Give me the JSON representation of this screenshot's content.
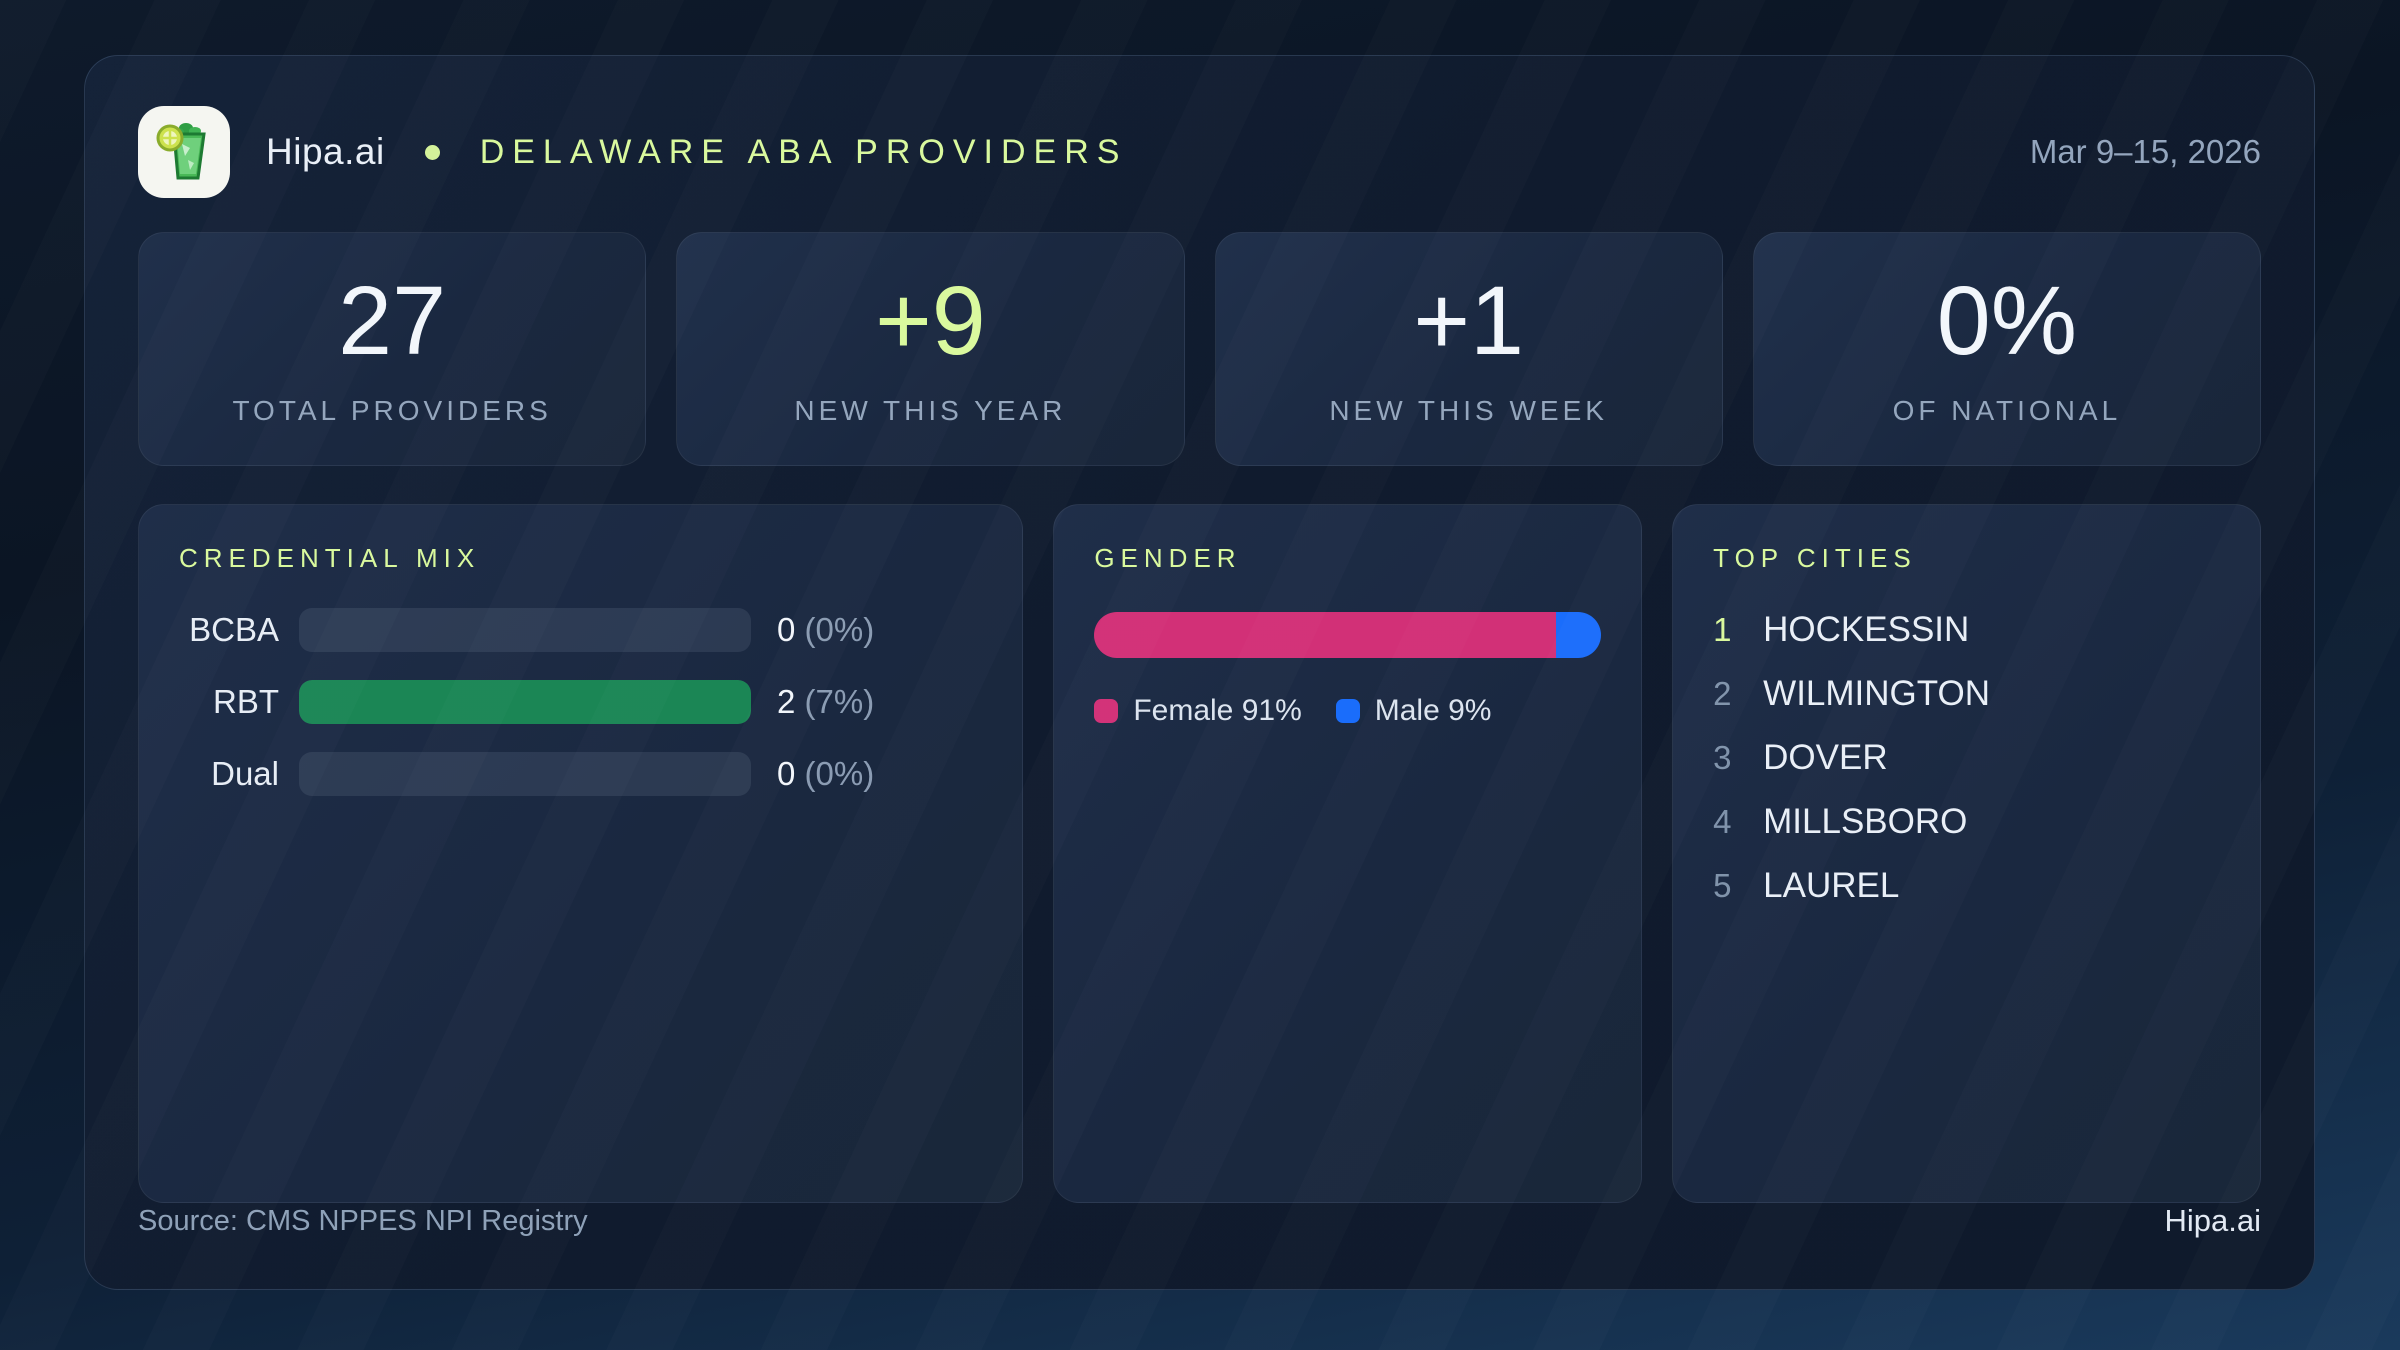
{
  "header": {
    "brand": "Hipa.ai",
    "title": "DELAWARE ABA PROVIDERS",
    "date_range": "Mar 9–15, 2026"
  },
  "stats": [
    {
      "value": "27",
      "label": "TOTAL PROVIDERS"
    },
    {
      "value": "+9",
      "label": "NEW THIS YEAR"
    },
    {
      "value": "+1",
      "label": "NEW THIS WEEK"
    },
    {
      "value": "0%",
      "label": "OF NATIONAL"
    }
  ],
  "credential_mix": {
    "title": "CREDENTIAL MIX",
    "bar_color": "#1b8655",
    "rows": [
      {
        "label": "BCBA",
        "count": "0",
        "pct": "(0%)",
        "fill_pct": 0
      },
      {
        "label": "RBT",
        "count": "2",
        "pct": "(7%)",
        "fill_pct": 100
      },
      {
        "label": "Dual",
        "count": "0",
        "pct": "(0%)",
        "fill_pct": 0
      }
    ]
  },
  "gender": {
    "title": "GENDER",
    "female_pct": 91,
    "male_pct": 9,
    "female_color": "#d23077",
    "male_color": "#1a6dfb",
    "female_label": "Female 91%",
    "male_label": "Male 9%"
  },
  "top_cities": {
    "title": "TOP CITIES",
    "items": [
      {
        "rank": "1",
        "city": "HOCKESSIN"
      },
      {
        "rank": "2",
        "city": "WILMINGTON"
      },
      {
        "rank": "3",
        "city": "DOVER"
      },
      {
        "rank": "4",
        "city": "MILLSBORO"
      },
      {
        "rank": "5",
        "city": "LAUREL"
      }
    ]
  },
  "footer": {
    "source": "Source: CMS NPPES NPI Registry",
    "brand": "Hipa.ai"
  },
  "colors": {
    "accent_lime": "#d9f99d",
    "green_bar": "#1b8655",
    "female_pink": "#d23077",
    "male_blue": "#1a6dfb",
    "muted_text": "#94a6bd"
  },
  "chart_data": [
    {
      "type": "bar",
      "title": "CREDENTIAL MIX",
      "orientation": "horizontal",
      "categories": [
        "BCBA",
        "RBT",
        "Dual"
      ],
      "values": [
        0,
        2,
        0
      ],
      "value_labels": [
        "0 (0%)",
        "2 (7%)",
        "0 (0%)"
      ],
      "bar_color": "#1b8655",
      "note": "bars normalized to max value; RBT (2) renders full width"
    },
    {
      "type": "stacked-bar",
      "title": "GENDER",
      "categories": [
        "Female",
        "Male"
      ],
      "values": [
        91,
        9
      ],
      "unit": "%",
      "colors": [
        "#d23077",
        "#1a6dfb"
      ],
      "legend": [
        "Female 91%",
        "Male 9%"
      ],
      "legend_position": "below"
    },
    {
      "type": "table",
      "title": "TOP CITIES",
      "categories": [
        "1",
        "2",
        "3",
        "4",
        "5"
      ],
      "values": [
        "HOCKESSIN",
        "WILMINGTON",
        "DOVER",
        "MILLSBORO",
        "LAUREL"
      ]
    }
  ]
}
